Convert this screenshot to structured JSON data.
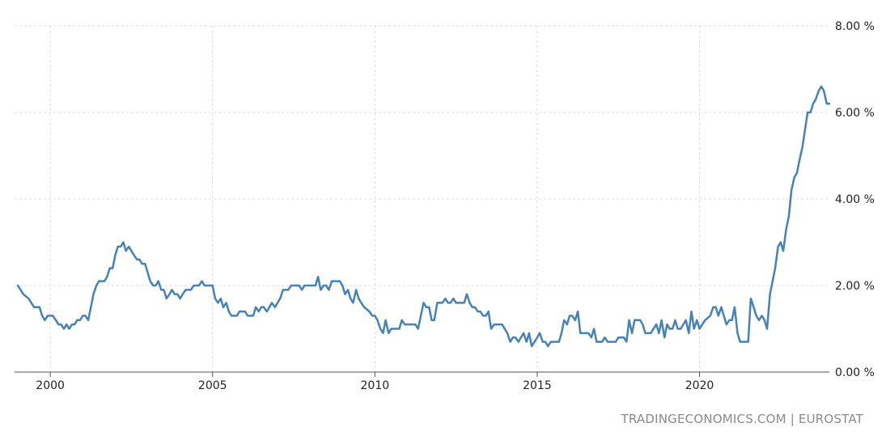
{
  "credit": "TRADINGECONOMICS.COM | EUROSTAT",
  "chart_data": {
    "type": "line",
    "title": "",
    "xlabel": "",
    "ylabel": "",
    "xlim": [
      1998.9,
      2024.0
    ],
    "ylim": [
      0,
      8
    ],
    "grid": true,
    "x_ticks": [
      {
        "value": 2000,
        "label": "2000"
      },
      {
        "value": 2005,
        "label": "2005"
      },
      {
        "value": 2010,
        "label": "2010"
      },
      {
        "value": 2015,
        "label": "2015"
      },
      {
        "value": 2020,
        "label": "2020"
      }
    ],
    "y_ticks": [
      {
        "value": 0,
        "label": "0.00 %"
      },
      {
        "value": 2,
        "label": "2.00 %"
      },
      {
        "value": 4,
        "label": "4.00 %"
      },
      {
        "value": 6,
        "label": "6.00 %"
      },
      {
        "value": 8,
        "label": "8.00 %"
      }
    ],
    "series": [
      {
        "color": "#4682b4",
        "points": [
          [
            1999.0,
            2.0
          ],
          [
            1999.17,
            1.8
          ],
          [
            1999.33,
            1.7
          ],
          [
            1999.5,
            1.5
          ],
          [
            1999.67,
            1.5
          ],
          [
            1999.75,
            1.3
          ],
          [
            1999.83,
            1.2
          ],
          [
            1999.92,
            1.3
          ],
          [
            2000.08,
            1.3
          ],
          [
            2000.17,
            1.2
          ],
          [
            2000.25,
            1.1
          ],
          [
            2000.33,
            1.1
          ],
          [
            2000.42,
            1.0
          ],
          [
            2000.5,
            1.1
          ],
          [
            2000.58,
            1.0
          ],
          [
            2000.67,
            1.1
          ],
          [
            2000.75,
            1.1
          ],
          [
            2000.83,
            1.2
          ],
          [
            2000.92,
            1.2
          ],
          [
            2001.0,
            1.3
          ],
          [
            2001.08,
            1.3
          ],
          [
            2001.17,
            1.2
          ],
          [
            2001.25,
            1.5
          ],
          [
            2001.33,
            1.8
          ],
          [
            2001.42,
            2.0
          ],
          [
            2001.5,
            2.1
          ],
          [
            2001.67,
            2.1
          ],
          [
            2001.75,
            2.2
          ],
          [
            2001.83,
            2.4
          ],
          [
            2001.92,
            2.4
          ],
          [
            2002.0,
            2.7
          ],
          [
            2002.08,
            2.9
          ],
          [
            2002.17,
            2.9
          ],
          [
            2002.25,
            3.0
          ],
          [
            2002.33,
            2.8
          ],
          [
            2002.42,
            2.9
          ],
          [
            2002.5,
            2.8
          ],
          [
            2002.58,
            2.7
          ],
          [
            2002.67,
            2.6
          ],
          [
            2002.75,
            2.6
          ],
          [
            2002.83,
            2.5
          ],
          [
            2002.92,
            2.5
          ],
          [
            2003.0,
            2.3
          ],
          [
            2003.08,
            2.1
          ],
          [
            2003.17,
            2.0
          ],
          [
            2003.25,
            2.0
          ],
          [
            2003.33,
            2.1
          ],
          [
            2003.42,
            1.9
          ],
          [
            2003.5,
            1.9
          ],
          [
            2003.58,
            1.7
          ],
          [
            2003.67,
            1.8
          ],
          [
            2003.75,
            1.9
          ],
          [
            2003.83,
            1.8
          ],
          [
            2003.92,
            1.8
          ],
          [
            2004.0,
            1.7
          ],
          [
            2004.08,
            1.8
          ],
          [
            2004.17,
            1.9
          ],
          [
            2004.33,
            1.9
          ],
          [
            2004.42,
            2.0
          ],
          [
            2004.58,
            2.0
          ],
          [
            2004.67,
            2.1
          ],
          [
            2004.75,
            2.0
          ],
          [
            2004.83,
            2.0
          ],
          [
            2005.0,
            2.0
          ],
          [
            2005.08,
            1.7
          ],
          [
            2005.17,
            1.6
          ],
          [
            2005.25,
            1.7
          ],
          [
            2005.33,
            1.5
          ],
          [
            2005.42,
            1.6
          ],
          [
            2005.5,
            1.4
          ],
          [
            2005.58,
            1.3
          ],
          [
            2005.75,
            1.3
          ],
          [
            2005.83,
            1.4
          ],
          [
            2006.0,
            1.4
          ],
          [
            2006.08,
            1.3
          ],
          [
            2006.25,
            1.3
          ],
          [
            2006.33,
            1.5
          ],
          [
            2006.42,
            1.4
          ],
          [
            2006.5,
            1.5
          ],
          [
            2006.58,
            1.5
          ],
          [
            2006.67,
            1.4
          ],
          [
            2006.75,
            1.5
          ],
          [
            2006.83,
            1.6
          ],
          [
            2006.92,
            1.5
          ],
          [
            2007.0,
            1.6
          ],
          [
            2007.08,
            1.7
          ],
          [
            2007.17,
            1.9
          ],
          [
            2007.33,
            1.9
          ],
          [
            2007.42,
            2.0
          ],
          [
            2007.67,
            2.0
          ],
          [
            2007.75,
            1.9
          ],
          [
            2007.83,
            2.0
          ],
          [
            2008.0,
            2.0
          ],
          [
            2008.08,
            2.0
          ],
          [
            2008.17,
            2.0
          ],
          [
            2008.25,
            2.2
          ],
          [
            2008.33,
            1.9
          ],
          [
            2008.42,
            2.0
          ],
          [
            2008.5,
            2.0
          ],
          [
            2008.58,
            1.9
          ],
          [
            2008.67,
            2.1
          ],
          [
            2008.92,
            2.1
          ],
          [
            2009.0,
            2.0
          ],
          [
            2009.08,
            1.8
          ],
          [
            2009.17,
            1.9
          ],
          [
            2009.25,
            1.7
          ],
          [
            2009.33,
            1.6
          ],
          [
            2009.42,
            1.9
          ],
          [
            2009.5,
            1.7
          ],
          [
            2009.58,
            1.6
          ],
          [
            2009.67,
            1.5
          ],
          [
            2009.83,
            1.4
          ],
          [
            2009.92,
            1.3
          ],
          [
            2010.0,
            1.3
          ],
          [
            2010.08,
            1.2
          ],
          [
            2010.17,
            1.0
          ],
          [
            2010.25,
            0.9
          ],
          [
            2010.33,
            1.2
          ],
          [
            2010.42,
            0.9
          ],
          [
            2010.5,
            1.0
          ],
          [
            2010.75,
            1.0
          ],
          [
            2010.83,
            1.2
          ],
          [
            2010.92,
            1.1
          ],
          [
            2011.0,
            1.1
          ],
          [
            2011.08,
            1.1
          ],
          [
            2011.25,
            1.1
          ],
          [
            2011.33,
            1.0
          ],
          [
            2011.5,
            1.6
          ],
          [
            2011.58,
            1.5
          ],
          [
            2011.67,
            1.5
          ],
          [
            2011.75,
            1.2
          ],
          [
            2011.83,
            1.2
          ],
          [
            2011.92,
            1.6
          ],
          [
            2012.08,
            1.6
          ],
          [
            2012.17,
            1.7
          ],
          [
            2012.25,
            1.6
          ],
          [
            2012.33,
            1.6
          ],
          [
            2012.42,
            1.7
          ],
          [
            2012.5,
            1.6
          ],
          [
            2012.58,
            1.6
          ],
          [
            2012.75,
            1.6
          ],
          [
            2012.83,
            1.8
          ],
          [
            2012.92,
            1.6
          ],
          [
            2013.0,
            1.5
          ],
          [
            2013.08,
            1.5
          ],
          [
            2013.17,
            1.4
          ],
          [
            2013.25,
            1.4
          ],
          [
            2013.33,
            1.3
          ],
          [
            2013.42,
            1.3
          ],
          [
            2013.5,
            1.4
          ],
          [
            2013.58,
            1.0
          ],
          [
            2013.67,
            1.1
          ],
          [
            2013.83,
            1.1
          ],
          [
            2013.92,
            1.1
          ],
          [
            2014.0,
            1.0
          ],
          [
            2014.08,
            0.9
          ],
          [
            2014.17,
            0.7
          ],
          [
            2014.25,
            0.8
          ],
          [
            2014.33,
            0.8
          ],
          [
            2014.42,
            0.7
          ],
          [
            2014.5,
            0.8
          ],
          [
            2014.58,
            0.9
          ],
          [
            2014.67,
            0.7
          ],
          [
            2014.75,
            0.9
          ],
          [
            2014.83,
            0.6
          ],
          [
            2014.92,
            0.7
          ],
          [
            2015.0,
            0.8
          ],
          [
            2015.08,
            0.9
          ],
          [
            2015.17,
            0.7
          ],
          [
            2015.25,
            0.7
          ],
          [
            2015.33,
            0.6
          ],
          [
            2015.42,
            0.7
          ],
          [
            2015.67,
            0.7
          ],
          [
            2015.75,
            0.9
          ],
          [
            2015.83,
            1.2
          ],
          [
            2015.92,
            1.1
          ],
          [
            2016.0,
            1.3
          ],
          [
            2016.08,
            1.3
          ],
          [
            2016.17,
            1.2
          ],
          [
            2016.25,
            1.4
          ],
          [
            2016.33,
            0.9
          ],
          [
            2016.42,
            0.9
          ],
          [
            2016.58,
            0.9
          ],
          [
            2016.67,
            0.8
          ],
          [
            2016.75,
            1.0
          ],
          [
            2016.83,
            0.7
          ],
          [
            2017.0,
            0.7
          ],
          [
            2017.08,
            0.8
          ],
          [
            2017.17,
            0.7
          ],
          [
            2017.42,
            0.7
          ],
          [
            2017.5,
            0.8
          ],
          [
            2017.67,
            0.8
          ],
          [
            2017.75,
            0.7
          ],
          [
            2017.83,
            1.2
          ],
          [
            2017.92,
            0.9
          ],
          [
            2018.0,
            1.2
          ],
          [
            2018.17,
            1.2
          ],
          [
            2018.25,
            1.1
          ],
          [
            2018.33,
            0.9
          ],
          [
            2018.5,
            0.9
          ],
          [
            2018.58,
            1.0
          ],
          [
            2018.67,
            1.1
          ],
          [
            2018.75,
            0.9
          ],
          [
            2018.83,
            1.2
          ],
          [
            2018.92,
            0.8
          ],
          [
            2019.0,
            1.1
          ],
          [
            2019.08,
            1.0
          ],
          [
            2019.17,
            1.0
          ],
          [
            2019.25,
            1.2
          ],
          [
            2019.33,
            1.0
          ],
          [
            2019.42,
            1.0
          ],
          [
            2019.5,
            1.1
          ],
          [
            2019.58,
            1.2
          ],
          [
            2019.67,
            0.9
          ],
          [
            2019.75,
            1.4
          ],
          [
            2019.83,
            1.0
          ],
          [
            2019.92,
            1.2
          ],
          [
            2020.0,
            1.0
          ],
          [
            2020.17,
            1.2
          ],
          [
            2020.33,
            1.3
          ],
          [
            2020.42,
            1.5
          ],
          [
            2020.5,
            1.5
          ],
          [
            2020.58,
            1.3
          ],
          [
            2020.67,
            1.5
          ],
          [
            2020.75,
            1.3
          ],
          [
            2020.83,
            1.1
          ],
          [
            2020.92,
            1.2
          ],
          [
            2021.0,
            1.2
          ],
          [
            2021.08,
            1.5
          ],
          [
            2021.17,
            0.9
          ],
          [
            2021.25,
            0.7
          ],
          [
            2021.5,
            0.7
          ],
          [
            2021.58,
            1.7
          ],
          [
            2021.67,
            1.5
          ],
          [
            2021.75,
            1.3
          ],
          [
            2021.83,
            1.2
          ],
          [
            2021.92,
            1.3
          ],
          [
            2022.0,
            1.2
          ],
          [
            2022.08,
            1.0
          ],
          [
            2022.17,
            1.8
          ],
          [
            2022.25,
            2.1
          ],
          [
            2022.33,
            2.4
          ],
          [
            2022.42,
            2.9
          ],
          [
            2022.5,
            3.0
          ],
          [
            2022.58,
            2.8
          ],
          [
            2022.67,
            3.3
          ],
          [
            2022.75,
            3.6
          ],
          [
            2022.83,
            4.2
          ],
          [
            2022.92,
            4.5
          ],
          [
            2023.0,
            4.6
          ],
          [
            2023.08,
            4.9
          ],
          [
            2023.17,
            5.2
          ],
          [
            2023.25,
            5.6
          ],
          [
            2023.33,
            6.0
          ],
          [
            2023.42,
            6.0
          ],
          [
            2023.5,
            6.2
          ],
          [
            2023.58,
            6.3
          ],
          [
            2023.67,
            6.5
          ],
          [
            2023.75,
            6.6
          ],
          [
            2023.83,
            6.5
          ],
          [
            2023.92,
            6.2
          ],
          [
            2024.0,
            6.2
          ]
        ]
      }
    ]
  }
}
